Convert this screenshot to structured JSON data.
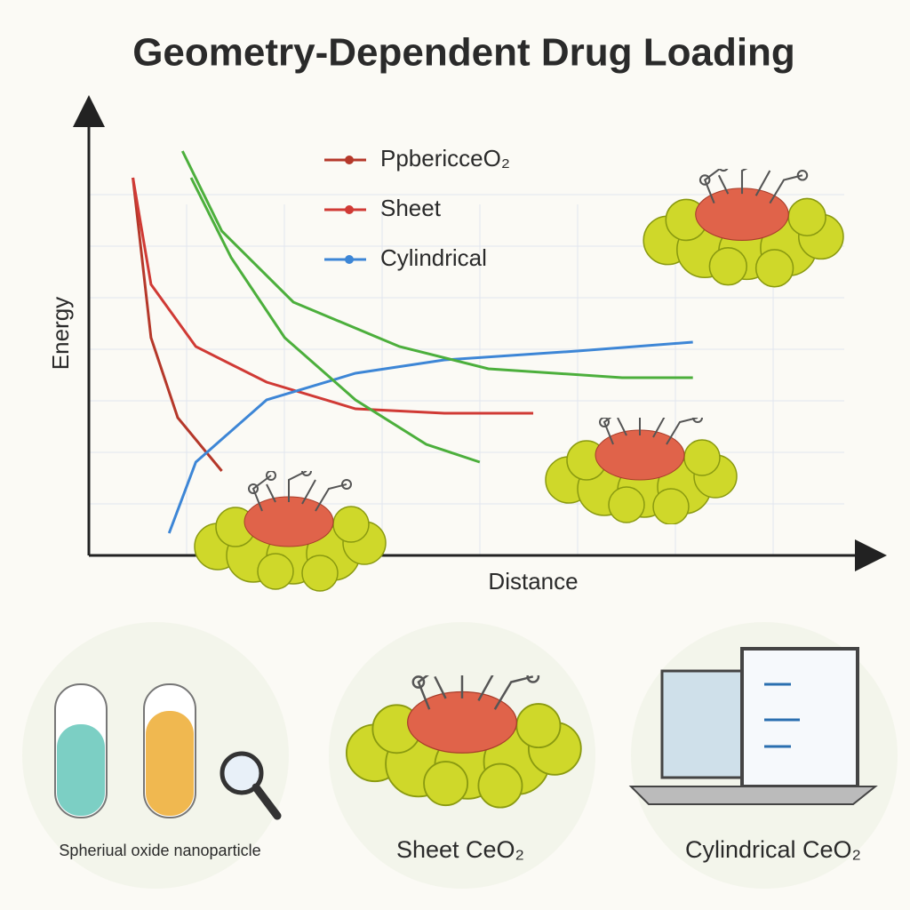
{
  "chart_data": {
    "type": "line",
    "title": "Geometry-Dependent Drug Loading",
    "x_label": "Distance",
    "y_label": "Energy",
    "xlim": [
      0,
      10
    ],
    "ylim": [
      0,
      10
    ],
    "grid": true,
    "series": [
      {
        "name": "PpbericceO₂",
        "color": "#b5382a",
        "x": [
          0.56,
          0.79,
          1.13,
          1.69
        ],
        "values": [
          8.5,
          4.9,
          3.1,
          1.9
        ]
      },
      {
        "name": "Sheet",
        "color": "#d03a35",
        "x": [
          0.56,
          0.79,
          1.36,
          2.26,
          3.39,
          4.52,
          5.65
        ],
        "values": [
          8.5,
          6.1,
          4.7,
          3.9,
          3.3,
          3.2,
          3.2
        ]
      },
      {
        "name": "Cylindrical",
        "color": "#3d86d6",
        "x": [
          1.02,
          1.36,
          2.26,
          3.39,
          4.52,
          6.21,
          7.68
        ],
        "values": [
          0.5,
          2.1,
          3.5,
          4.1,
          4.4,
          4.6,
          4.8
        ]
      },
      {
        "color": "#4caf3c",
        "x": [
          1.19,
          1.69,
          2.6,
          3.95,
          5.08,
          6.78,
          7.68
        ],
        "values": [
          9.1,
          7.3,
          5.7,
          4.7,
          4.2,
          4.0,
          4.0
        ]
      },
      {
        "color": "#4caf3c",
        "x": [
          1.3,
          1.81,
          2.49,
          3.39,
          4.29,
          4.97
        ],
        "values": [
          8.5,
          6.7,
          4.9,
          3.5,
          2.5,
          2.1
        ]
      }
    ],
    "captions": [
      "Spheriual oxide nanoparticle",
      "Sheet CeO₂",
      "Cylindrical CeO₂"
    ]
  }
}
